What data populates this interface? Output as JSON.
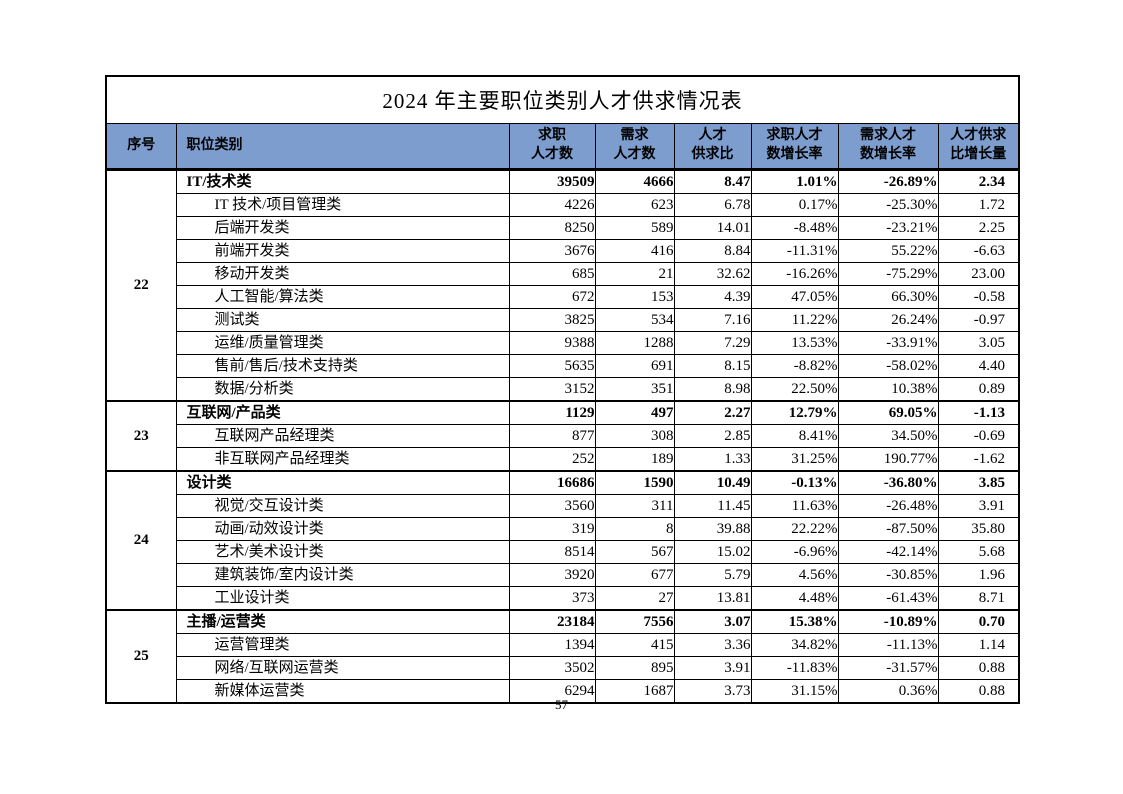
{
  "colors": {
    "header_bg": "#7D9DCE",
    "border": "#000000",
    "text": "#000000"
  },
  "page": {
    "number": "57"
  },
  "table": {
    "title": "2024 年主要职位类别人才供求情况表",
    "headers": [
      "序号",
      "职位类别",
      "求职\n人才数",
      "需求\n人才数",
      "人才\n供求比",
      "求职人才\n数增长率",
      "需求人才\n数增长率",
      "人才供求\n比增长量"
    ],
    "groups": [
      {
        "seq": "22",
        "rows": [
          {
            "name": "IT/技术类",
            "bold": true,
            "values": [
              "39509",
              "4666",
              "8.47",
              "1.01%",
              "-26.89%",
              "2.34"
            ]
          },
          {
            "name": "IT 技术/项目管理类",
            "bold": false,
            "values": [
              "4226",
              "623",
              "6.78",
              "0.17%",
              "-25.30%",
              "1.72"
            ]
          },
          {
            "name": "后端开发类",
            "bold": false,
            "values": [
              "8250",
              "589",
              "14.01",
              "-8.48%",
              "-23.21%",
              "2.25"
            ]
          },
          {
            "name": "前端开发类",
            "bold": false,
            "values": [
              "3676",
              "416",
              "8.84",
              "-11.31%",
              "55.22%",
              "-6.63"
            ]
          },
          {
            "name": "移动开发类",
            "bold": false,
            "values": [
              "685",
              "21",
              "32.62",
              "-16.26%",
              "-75.29%",
              "23.00"
            ]
          },
          {
            "name": "人工智能/算法类",
            "bold": false,
            "values": [
              "672",
              "153",
              "4.39",
              "47.05%",
              "66.30%",
              "-0.58"
            ]
          },
          {
            "name": "测试类",
            "bold": false,
            "values": [
              "3825",
              "534",
              "7.16",
              "11.22%",
              "26.24%",
              "-0.97"
            ]
          },
          {
            "name": "运维/质量管理类",
            "bold": false,
            "values": [
              "9388",
              "1288",
              "7.29",
              "13.53%",
              "-33.91%",
              "3.05"
            ]
          },
          {
            "name": "售前/售后/技术支持类",
            "bold": false,
            "values": [
              "5635",
              "691",
              "8.15",
              "-8.82%",
              "-58.02%",
              "4.40"
            ]
          },
          {
            "name": "数据/分析类",
            "bold": false,
            "values": [
              "3152",
              "351",
              "8.98",
              "22.50%",
              "10.38%",
              "0.89"
            ]
          }
        ]
      },
      {
        "seq": "23",
        "rows": [
          {
            "name": "互联网/产品类",
            "bold": true,
            "values": [
              "1129",
              "497",
              "2.27",
              "12.79%",
              "69.05%",
              "-1.13"
            ]
          },
          {
            "name": "互联网产品经理类",
            "bold": false,
            "values": [
              "877",
              "308",
              "2.85",
              "8.41%",
              "34.50%",
              "-0.69"
            ]
          },
          {
            "name": "非互联网产品经理类",
            "bold": false,
            "values": [
              "252",
              "189",
              "1.33",
              "31.25%",
              "190.77%",
              "-1.62"
            ]
          }
        ]
      },
      {
        "seq": "24",
        "rows": [
          {
            "name": "设计类",
            "bold": true,
            "values": [
              "16686",
              "1590",
              "10.49",
              "-0.13%",
              "-36.80%",
              "3.85"
            ]
          },
          {
            "name": "视觉/交互设计类",
            "bold": false,
            "values": [
              "3560",
              "311",
              "11.45",
              "11.63%",
              "-26.48%",
              "3.91"
            ]
          },
          {
            "name": "动画/动效设计类",
            "bold": false,
            "values": [
              "319",
              "8",
              "39.88",
              "22.22%",
              "-87.50%",
              "35.80"
            ]
          },
          {
            "name": "艺术/美术设计类",
            "bold": false,
            "values": [
              "8514",
              "567",
              "15.02",
              "-6.96%",
              "-42.14%",
              "5.68"
            ]
          },
          {
            "name": "建筑装饰/室内设计类",
            "bold": false,
            "values": [
              "3920",
              "677",
              "5.79",
              "4.56%",
              "-30.85%",
              "1.96"
            ]
          },
          {
            "name": "工业设计类",
            "bold": false,
            "values": [
              "373",
              "27",
              "13.81",
              "4.48%",
              "-61.43%",
              "8.71"
            ]
          }
        ]
      },
      {
        "seq": "25",
        "rows": [
          {
            "name": "主播/运营类",
            "bold": true,
            "values": [
              "23184",
              "7556",
              "3.07",
              "15.38%",
              "-10.89%",
              "0.70"
            ]
          },
          {
            "name": "运营管理类",
            "bold": false,
            "values": [
              "1394",
              "415",
              "3.36",
              "34.82%",
              "-11.13%",
              "1.14"
            ]
          },
          {
            "name": "网络/互联网运营类",
            "bold": false,
            "values": [
              "3502",
              "895",
              "3.91",
              "-11.83%",
              "-31.57%",
              "0.88"
            ]
          },
          {
            "name": "新媒体运营类",
            "bold": false,
            "values": [
              "6294",
              "1687",
              "3.73",
              "31.15%",
              "0.36%",
              "0.88"
            ]
          }
        ]
      }
    ]
  }
}
